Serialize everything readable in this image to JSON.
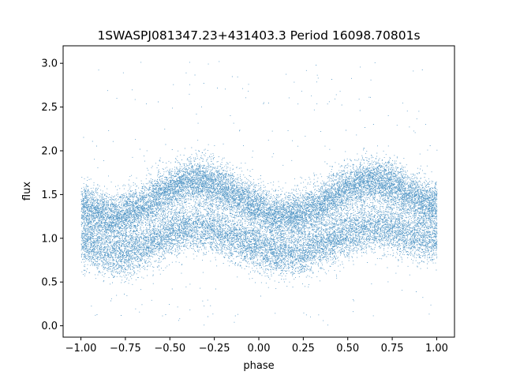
{
  "chart_data": {
    "type": "scatter",
    "title": "1SWASPJ081347.23+431403.3 Period 16098.70801s",
    "xlabel": "phase",
    "ylabel": "flux",
    "xlim": [
      -1.1,
      1.1
    ],
    "ylim": [
      -0.13,
      3.2
    ],
    "xticks": [
      -1.0,
      -0.75,
      -0.5,
      -0.25,
      0.0,
      0.25,
      0.5,
      0.75,
      1.0
    ],
    "xtick_labels": [
      "−1.00",
      "−0.75",
      "−0.50",
      "−0.25",
      "0.00",
      "0.25",
      "0.50",
      "0.75",
      "1.00"
    ],
    "yticks": [
      0.0,
      0.5,
      1.0,
      1.5,
      2.0,
      2.5,
      3.0
    ],
    "ytick_labels": [
      "0.0",
      "0.5",
      "1.0",
      "1.5",
      "2.0",
      "2.5",
      "3.0"
    ],
    "grid": false,
    "legend": "none",
    "series": [
      {
        "marker_color": "#1f77b4",
        "phase_range": [
          -1.0,
          1.0
        ],
        "upper_band": {
          "description_points_phase": [
            -1.0,
            -0.82,
            -0.35,
            0.15,
            0.65,
            1.0
          ],
          "flux": [
            1.35,
            1.25,
            1.65,
            1.25,
            1.65,
            1.38
          ]
        },
        "lower_band": {
          "description_points_phase": [
            -1.0,
            -0.82,
            -0.35,
            0.15,
            0.65,
            1.0
          ],
          "flux": [
            0.95,
            0.82,
            1.12,
            0.82,
            1.12,
            0.98
          ]
        },
        "outlier_flux_range": [
          0.0,
          3.05
        ]
      }
    ]
  }
}
